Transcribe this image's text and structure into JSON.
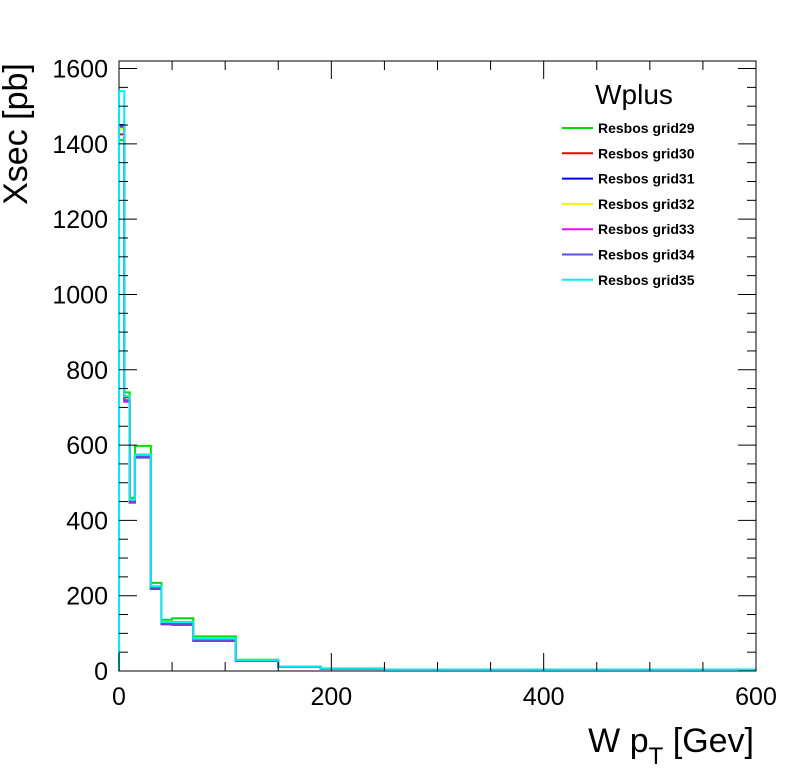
{
  "chart_data": {
    "type": "line",
    "style": "step-histogram",
    "legend_title": "Wplus",
    "legend_position": "top-right",
    "xlabel": "W p_T [Gev]",
    "ylabel": "Xsec [pb]",
    "xlim": [
      0,
      600
    ],
    "ylim": [
      0,
      1620
    ],
    "x_ticks": [
      0,
      200,
      400,
      600
    ],
    "y_ticks": [
      0,
      200,
      400,
      600,
      800,
      1000,
      1200,
      1400,
      1600
    ],
    "grid": false,
    "bin_edges": [
      0,
      5,
      10,
      15,
      30,
      40,
      50,
      70,
      110,
      150,
      190,
      250,
      600
    ],
    "series": [
      {
        "name": "Resbos grid29",
        "color": "#00dd00",
        "values": [
          1410,
          740,
          460,
          598,
          234,
          136,
          140,
          92,
          30,
          12,
          7,
          4
        ]
      },
      {
        "name": "Resbos grid30",
        "color": "#ee0000",
        "values": [
          1425,
          725,
          452,
          572,
          222,
          128,
          127,
          83,
          28,
          11,
          6,
          3.5
        ]
      },
      {
        "name": "Resbos grid31",
        "color": "#0000dd",
        "values": [
          1450,
          718,
          448,
          567,
          218,
          124,
          123,
          80,
          27,
          10.5,
          6,
          3.5
        ]
      },
      {
        "name": "Resbos grid32",
        "color": "#ffee00",
        "values": [
          1440,
          722,
          450,
          570,
          220,
          126,
          125,
          82,
          28,
          11,
          6,
          3.5
        ]
      },
      {
        "name": "Resbos grid33",
        "color": "#ff00ff",
        "values": [
          1445,
          715,
          447,
          569,
          219,
          125,
          124,
          81,
          27,
          10.5,
          6,
          3.5
        ]
      },
      {
        "name": "Resbos grid34",
        "color": "#5555cc",
        "values": [
          1448,
          719,
          449,
          568,
          220,
          126,
          125,
          82,
          28,
          11,
          6,
          3.5
        ]
      },
      {
        "name": "Resbos grid35",
        "color": "#00eeee",
        "values": [
          1540,
          730,
          455,
          575,
          225,
          130,
          130,
          86,
          29,
          11.5,
          6.5,
          3.8
        ]
      }
    ]
  }
}
